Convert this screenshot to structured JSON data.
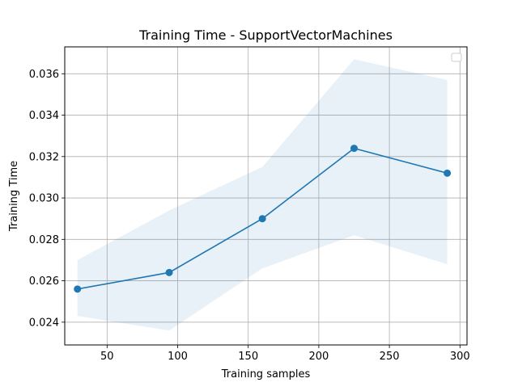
{
  "chart_data": {
    "type": "line",
    "title": "Training Time - SupportVectorMachines",
    "xlabel": "Training samples",
    "ylabel": "Training Time",
    "xlim": [
      20,
      305
    ],
    "ylim": [
      0.0229,
      0.0373
    ],
    "xticks": [
      50,
      100,
      150,
      200,
      250,
      300
    ],
    "yticks": [
      0.024,
      0.026,
      0.028,
      0.03,
      0.032,
      0.034,
      0.036
    ],
    "xtick_labels": [
      "50",
      "100",
      "150",
      "200",
      "250",
      "300"
    ],
    "ytick_labels": [
      "0.024",
      "0.026",
      "0.028",
      "0.030",
      "0.032",
      "0.034",
      "0.036"
    ],
    "grid": true,
    "legend": "top-right, empty",
    "series": [
      {
        "x": [
          29,
          94,
          160,
          225,
          291
        ],
        "values": [
          0.0256,
          0.0264,
          0.029,
          0.0324,
          0.0312
        ],
        "band_lower": [
          0.0243,
          0.0236,
          0.0266,
          0.0282,
          0.0268
        ],
        "band_upper": [
          0.027,
          0.0294,
          0.0315,
          0.0367,
          0.0357
        ],
        "color": "#1f77b4",
        "band_color": "#1f77b4"
      }
    ]
  }
}
